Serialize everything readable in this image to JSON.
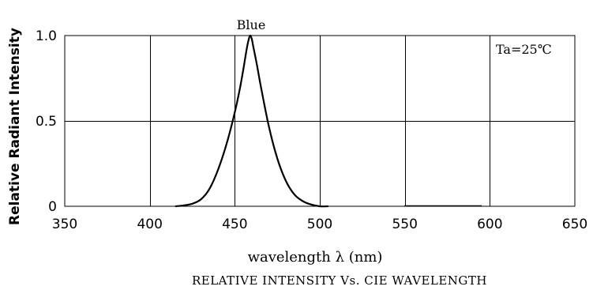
{
  "chart_data": {
    "type": "line",
    "title": "",
    "xlabel": "wavelength λ (nm)",
    "ylabel": "Relative Radiant Intensity",
    "caption": "RELATIVE INTENSITY Vs. CIE WAVELENGTH",
    "xlim": [
      350,
      650
    ],
    "ylim": [
      0,
      1.0
    ],
    "x_ticks": [
      350,
      400,
      450,
      500,
      550,
      600,
      650
    ],
    "y_ticks": [
      0,
      0.5,
      1.0
    ],
    "x_tick_labels": [
      "350",
      "400",
      "450",
      "500",
      "550",
      "600",
      "650"
    ],
    "y_tick_labels": [
      "0",
      "0.5",
      "1.0"
    ],
    "grid": true,
    "series": [
      {
        "name": "Blue",
        "x": [
          415,
          420,
          425,
          430,
          435,
          440,
          445,
          450,
          453,
          455,
          457,
          458,
          459,
          460,
          461,
          463,
          465,
          470,
          475,
          480,
          485,
          490,
          495,
          500,
          505
        ],
        "y": [
          0.0,
          0.005,
          0.015,
          0.04,
          0.1,
          0.21,
          0.36,
          0.55,
          0.69,
          0.8,
          0.92,
          0.97,
          1.0,
          0.98,
          0.93,
          0.83,
          0.72,
          0.47,
          0.28,
          0.15,
          0.07,
          0.03,
          0.01,
          0.0,
          0.0
        ]
      }
    ],
    "annotations": [
      "Ta=25℃"
    ]
  }
}
